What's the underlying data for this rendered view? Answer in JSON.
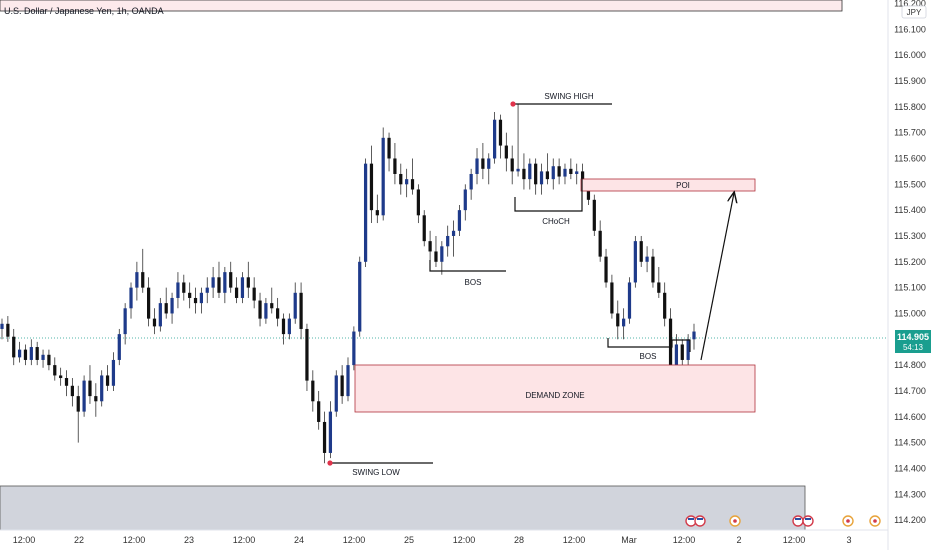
{
  "header": {
    "title": "U.S. Dollar / Japanese Yen, 1h, OANDA",
    "currency_badge": "JPY"
  },
  "price_marker": {
    "price": "114.905",
    "countdown": "54:13",
    "value": 114.905
  },
  "colors": {
    "up_candle": "#1e3a8a",
    "down_candle": "#111111",
    "wick": "#333333",
    "marker_bg": "#1a9e8f",
    "zone_fill": "#fde4e6",
    "zone_border": "#b0303b",
    "top_zone_fill": "#fdeaec",
    "gray_zone_fill": "#d1d4dc",
    "pivot_dot": "#e0334b"
  },
  "chart_data": {
    "type": "candlestick",
    "title": "U.S. Dollar / Japanese Yen, 1h, OANDA",
    "y_range": [
      114.17,
      116.23
    ],
    "y_ticks": [
      "116.200",
      "116.100",
      "116.000",
      "115.900",
      "115.800",
      "115.700",
      "115.600",
      "115.500",
      "115.400",
      "115.300",
      "115.200",
      "115.100",
      "115.000",
      "114.800",
      "114.700",
      "114.600",
      "114.500",
      "114.400",
      "114.300",
      "114.200"
    ],
    "x_ticks": [
      "12:00",
      "22",
      "12:00",
      "23",
      "12:00",
      "24",
      "12:00",
      "25",
      "12:00",
      "28",
      "12:00",
      "Mar",
      "12:00",
      "2",
      "12:00",
      "3"
    ],
    "candles": [
      [
        114.94,
        114.98,
        114.9,
        114.96
      ],
      [
        114.96,
        114.99,
        114.89,
        114.91
      ],
      [
        114.91,
        114.94,
        114.8,
        114.83
      ],
      [
        114.83,
        114.89,
        114.81,
        114.86
      ],
      [
        114.86,
        114.88,
        114.8,
        114.82
      ],
      [
        114.82,
        114.9,
        114.8,
        114.87
      ],
      [
        114.87,
        114.89,
        114.8,
        114.82
      ],
      [
        114.82,
        114.86,
        114.79,
        114.84
      ],
      [
        114.84,
        114.86,
        114.78,
        114.8
      ],
      [
        114.8,
        114.83,
        114.74,
        114.76
      ],
      [
        114.76,
        114.79,
        114.72,
        114.75
      ],
      [
        114.75,
        114.78,
        114.68,
        114.72
      ],
      [
        114.72,
        114.75,
        114.64,
        114.68
      ],
      [
        114.68,
        114.72,
        114.5,
        114.62
      ],
      [
        114.62,
        114.76,
        114.6,
        114.74
      ],
      [
        114.74,
        114.8,
        114.65,
        114.68
      ],
      [
        114.68,
        114.73,
        114.6,
        114.66
      ],
      [
        114.66,
        114.78,
        114.64,
        114.76
      ],
      [
        114.76,
        114.8,
        114.7,
        114.72
      ],
      [
        114.72,
        114.85,
        114.7,
        114.82
      ],
      [
        114.82,
        114.94,
        114.8,
        114.92
      ],
      [
        114.92,
        115.04,
        114.88,
        115.02
      ],
      [
        115.02,
        115.12,
        114.98,
        115.1
      ],
      [
        115.1,
        115.2,
        115.05,
        115.16
      ],
      [
        115.16,
        115.25,
        115.08,
        115.1
      ],
      [
        115.1,
        115.14,
        114.95,
        114.98
      ],
      [
        114.98,
        115.02,
        114.92,
        114.95
      ],
      [
        114.95,
        115.06,
        114.93,
        115.04
      ],
      [
        115.04,
        115.1,
        114.98,
        115.0
      ],
      [
        115.0,
        115.08,
        114.96,
        115.06
      ],
      [
        115.06,
        115.16,
        115.02,
        115.12
      ],
      [
        115.12,
        115.15,
        115.05,
        115.08
      ],
      [
        115.08,
        115.12,
        115.02,
        115.06
      ],
      [
        115.06,
        115.1,
        115.0,
        115.04
      ],
      [
        115.04,
        115.1,
        115.0,
        115.08
      ],
      [
        115.08,
        115.14,
        115.04,
        115.1
      ],
      [
        115.1,
        115.18,
        115.06,
        115.14
      ],
      [
        115.14,
        115.2,
        115.06,
        115.08
      ],
      [
        115.08,
        115.18,
        115.04,
        115.16
      ],
      [
        115.16,
        115.2,
        115.08,
        115.1
      ],
      [
        115.1,
        115.14,
        115.04,
        115.06
      ],
      [
        115.06,
        115.16,
        115.04,
        115.14
      ],
      [
        115.14,
        115.2,
        115.06,
        115.1
      ],
      [
        115.1,
        115.14,
        115.02,
        115.05
      ],
      [
        115.05,
        115.08,
        114.95,
        114.98
      ],
      [
        114.98,
        115.06,
        114.96,
        115.04
      ],
      [
        115.04,
        115.1,
        115.0,
        115.02
      ],
      [
        115.02,
        115.06,
        114.95,
        114.98
      ],
      [
        114.98,
        115.0,
        114.88,
        114.92
      ],
      [
        114.92,
        115.0,
        114.9,
        114.98
      ],
      [
        114.98,
        115.12,
        114.96,
        115.08
      ],
      [
        115.08,
        115.12,
        114.9,
        114.94
      ],
      [
        114.94,
        114.96,
        114.7,
        114.74
      ],
      [
        114.74,
        114.78,
        114.62,
        114.66
      ],
      [
        114.66,
        114.7,
        114.55,
        114.58
      ],
      [
        114.58,
        114.62,
        114.42,
        114.46
      ],
      [
        114.46,
        114.66,
        114.44,
        114.62
      ],
      [
        114.62,
        114.78,
        114.6,
        114.76
      ],
      [
        114.76,
        114.8,
        114.65,
        114.68
      ],
      [
        114.68,
        114.83,
        114.66,
        114.8
      ],
      [
        114.8,
        114.95,
        114.78,
        114.93
      ],
      [
        114.93,
        115.22,
        114.91,
        115.2
      ],
      [
        115.2,
        115.6,
        115.18,
        115.58
      ],
      [
        115.58,
        115.65,
        115.35,
        115.4
      ],
      [
        115.4,
        115.46,
        115.35,
        115.38
      ],
      [
        115.38,
        115.72,
        115.36,
        115.68
      ],
      [
        115.68,
        115.7,
        115.55,
        115.6
      ],
      [
        115.6,
        115.66,
        115.5,
        115.54
      ],
      [
        115.54,
        115.58,
        115.46,
        115.5
      ],
      [
        115.5,
        115.56,
        115.45,
        115.52
      ],
      [
        115.52,
        115.6,
        115.46,
        115.48
      ],
      [
        115.48,
        115.5,
        115.35,
        115.38
      ],
      [
        115.38,
        115.4,
        115.26,
        115.28
      ],
      [
        115.28,
        115.32,
        115.2,
        115.24
      ],
      [
        115.24,
        115.3,
        115.18,
        115.2
      ],
      [
        115.2,
        115.28,
        115.15,
        115.26
      ],
      [
        115.26,
        115.34,
        115.22,
        115.3
      ],
      [
        115.3,
        115.36,
        115.22,
        115.32
      ],
      [
        115.32,
        115.42,
        115.3,
        115.4
      ],
      [
        115.4,
        115.5,
        115.36,
        115.48
      ],
      [
        115.48,
        115.56,
        115.44,
        115.54
      ],
      [
        115.54,
        115.64,
        115.5,
        115.6
      ],
      [
        115.6,
        115.66,
        115.52,
        115.56
      ],
      [
        115.56,
        115.62,
        115.5,
        115.6
      ],
      [
        115.6,
        115.78,
        115.58,
        115.75
      ],
      [
        115.75,
        115.77,
        115.6,
        115.65
      ],
      [
        115.65,
        115.7,
        115.55,
        115.6
      ],
      [
        115.6,
        115.65,
        115.5,
        115.55
      ],
      [
        115.55,
        115.81,
        115.53,
        115.56
      ],
      [
        115.56,
        115.62,
        115.48,
        115.52
      ],
      [
        115.52,
        115.6,
        115.48,
        115.58
      ],
      [
        115.58,
        115.6,
        115.46,
        115.5
      ],
      [
        115.5,
        115.58,
        115.46,
        115.55
      ],
      [
        115.55,
        115.62,
        115.5,
        115.52
      ],
      [
        115.52,
        115.6,
        115.48,
        115.57
      ],
      [
        115.57,
        115.6,
        115.5,
        115.53
      ],
      [
        115.53,
        115.58,
        115.5,
        115.56
      ],
      [
        115.56,
        115.6,
        115.52,
        115.54
      ],
      [
        115.54,
        115.58,
        115.5,
        115.55
      ],
      [
        115.55,
        115.58,
        115.48,
        115.5
      ],
      [
        115.5,
        115.52,
        115.42,
        115.44
      ],
      [
        115.44,
        115.46,
        115.3,
        115.32
      ],
      [
        115.32,
        115.36,
        115.2,
        115.22
      ],
      [
        115.22,
        115.25,
        115.1,
        115.12
      ],
      [
        115.12,
        115.15,
        114.98,
        115.0
      ],
      [
        115.0,
        115.05,
        114.9,
        114.95
      ],
      [
        114.95,
        115.02,
        114.9,
        114.98
      ],
      [
        114.98,
        115.14,
        114.96,
        115.12
      ],
      [
        115.12,
        115.3,
        115.1,
        115.28
      ],
      [
        115.28,
        115.3,
        115.18,
        115.2
      ],
      [
        115.2,
        115.26,
        115.16,
        115.22
      ],
      [
        115.22,
        115.25,
        115.1,
        115.12
      ],
      [
        115.12,
        115.18,
        115.06,
        115.08
      ],
      [
        115.08,
        115.12,
        114.95,
        114.98
      ],
      [
        114.98,
        115.02,
        114.75,
        114.78
      ],
      [
        114.78,
        114.92,
        114.76,
        114.88
      ],
      [
        114.88,
        114.9,
        114.72,
        114.82
      ],
      [
        114.82,
        114.92,
        114.8,
        114.9
      ],
      [
        114.9,
        114.96,
        114.86,
        114.93
      ]
    ],
    "current_price": 114.905,
    "annotations": [
      {
        "text": "SWING HIGH",
        "price": 115.8
      },
      {
        "text": "SWING LOW",
        "price": 114.42
      },
      {
        "text": "BOS",
        "price": 115.15
      },
      {
        "text": "CHoCH",
        "price": 115.38
      },
      {
        "text": "BOS",
        "price": 114.88
      },
      {
        "text": "POI",
        "price_range": [
          115.47,
          115.52
        ]
      },
      {
        "text": "DEMAND ZONE",
        "price_range": [
          114.61,
          114.79
        ]
      }
    ]
  }
}
